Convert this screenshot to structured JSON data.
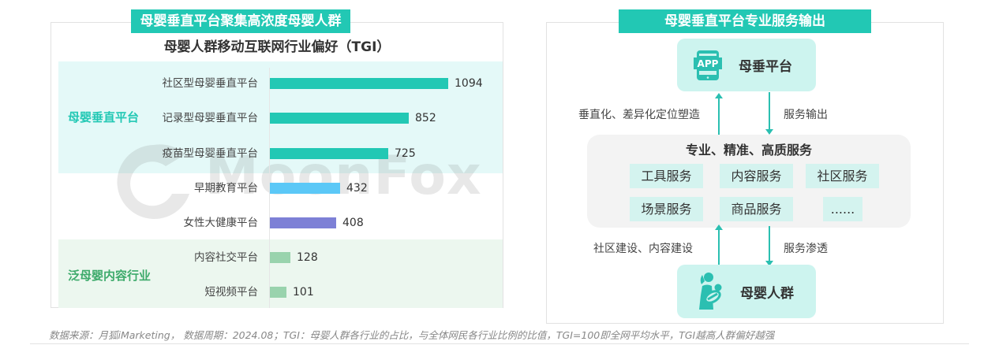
{
  "left_panel": {
    "header": "母婴垂直平台聚集高浓度母婴人群",
    "chart_title": "母婴人群移动互联网行业偏好（TGI）",
    "groups": [
      {
        "label": "母婴垂直平台",
        "color": "#22c8b4"
      },
      {
        "label": "泛母婴内容行业",
        "color": "#3daa6b"
      }
    ],
    "watermark": "MoonFox"
  },
  "right_panel": {
    "header": "母婴垂直平台专业服务输出",
    "top_node": {
      "icon_text": "APP",
      "label": "母垂平台"
    },
    "bottom_node": {
      "label": "母婴人群"
    },
    "services_title": "专业、精准、高质服务",
    "services": [
      "工具服务",
      "内容服务",
      "社区服务",
      "场景服务",
      "商品服务",
      "......"
    ],
    "flow_labels": {
      "up_top": "垂直化、差异化定位塑造",
      "down_top": "服务输出",
      "up_bottom": "社区建设、内容建设",
      "down_bottom": "服务渗透"
    }
  },
  "footer": "数据来源：月狐iMarketing， 数据周期：2024.08；TGI：母婴人群各行业的占比，与全体网民各行业比例的比值，TGI=100即全网平均水平，TGI越高人群偏好越强",
  "chart_data": {
    "type": "bar",
    "orientation": "horizontal",
    "title": "母婴人群移动互联网行业偏好（TGI）",
    "xlabel": "",
    "ylabel": "",
    "categories": [
      "社区型母婴垂直平台",
      "记录型母婴垂直平台",
      "疫苗型母婴垂直平台",
      "早期教育平台",
      "女性大健康平台",
      "内容社交平台",
      "短视频平台"
    ],
    "values": [
      1094,
      852,
      725,
      432,
      408,
      128,
      101
    ],
    "colors": [
      "#22c8b4",
      "#22c8b4",
      "#22c8b4",
      "#5bc8f7",
      "#7d80d6",
      "#99d3ad",
      "#99d3ad"
    ],
    "groups": [
      {
        "name": "母婴垂直平台",
        "members": [
          "社区型母婴垂直平台",
          "记录型母婴垂直平台",
          "疫苗型母婴垂直平台"
        ]
      },
      {
        "name": "泛母婴内容行业",
        "members": [
          "内容社交平台",
          "短视频平台"
        ]
      }
    ],
    "data_labels": true,
    "grid": false,
    "xlim": [
      0,
      1094
    ]
  }
}
